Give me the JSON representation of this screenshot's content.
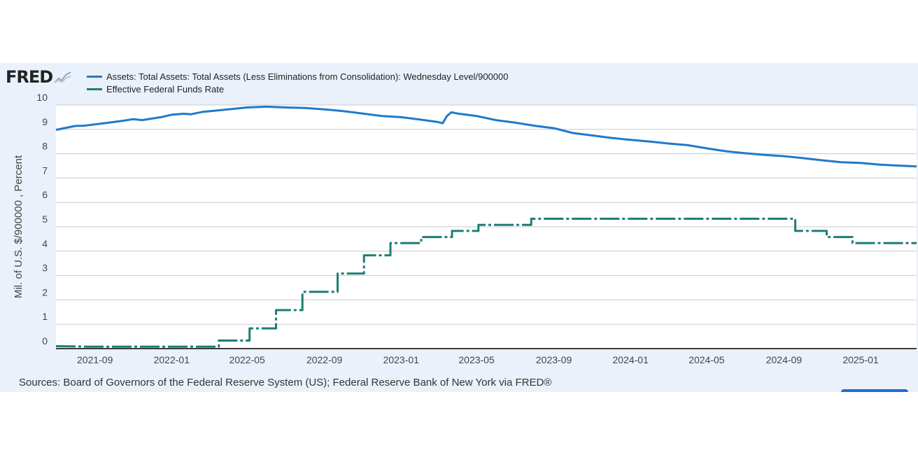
{
  "logo": {
    "text": "FRED"
  },
  "colors": {
    "assets": "#1f7acb",
    "effr": "#1c7e74",
    "panel": "#eaf1fa"
  },
  "legend": [
    {
      "label": "Assets: Total Assets: Total Assets (Less Eliminations from Consolidation): Wednesday Level/900000"
    },
    {
      "label": "Effective Federal Funds Rate"
    }
  ],
  "sources": "Sources: Board of Governors of the Federal Reserve System (US); Federal Reserve Bank of New York via FRED®",
  "chart_data": {
    "type": "line",
    "ylabel": "Mil. of U.S. $/900000 , Percent",
    "ylim": [
      0,
      10
    ],
    "yticks": [
      "0",
      "1",
      "2",
      "3",
      "4",
      "5",
      "6",
      "7",
      "8",
      "9",
      "10"
    ],
    "xlim": [
      "2021-07-01",
      "2025-03-31"
    ],
    "xticks": [
      "2021-09",
      "2022-01",
      "2022-05",
      "2022-09",
      "2023-01",
      "2023-05",
      "2023-09",
      "2024-01",
      "2024-05",
      "2024-09",
      "2025-01"
    ],
    "grid": true,
    "series": [
      {
        "name": "Assets: Total Assets: Total Assets (Less Eliminations from Consolidation): Wednesday Level/900000",
        "style": "solid",
        "points": [
          [
            "2021-07-01",
            8.98
          ],
          [
            "2021-08-01",
            9.14
          ],
          [
            "2021-08-15",
            9.15
          ],
          [
            "2021-09-15",
            9.25
          ],
          [
            "2021-10-15",
            9.35
          ],
          [
            "2021-11-01",
            9.42
          ],
          [
            "2021-11-15",
            9.38
          ],
          [
            "2021-12-15",
            9.5
          ],
          [
            "2022-01-01",
            9.6
          ],
          [
            "2022-01-20",
            9.64
          ],
          [
            "2022-02-01",
            9.62
          ],
          [
            "2022-02-20",
            9.72
          ],
          [
            "2022-03-01",
            9.74
          ],
          [
            "2022-04-01",
            9.82
          ],
          [
            "2022-04-20",
            9.87
          ],
          [
            "2022-05-01",
            9.9
          ],
          [
            "2022-06-01",
            9.93
          ],
          [
            "2022-07-01",
            9.9
          ],
          [
            "2022-08-01",
            9.88
          ],
          [
            "2022-09-01",
            9.82
          ],
          [
            "2022-10-01",
            9.75
          ],
          [
            "2022-11-01",
            9.65
          ],
          [
            "2022-12-01",
            9.55
          ],
          [
            "2023-01-01",
            9.5
          ],
          [
            "2023-02-01",
            9.4
          ],
          [
            "2023-03-01",
            9.3
          ],
          [
            "2023-03-08",
            9.25
          ],
          [
            "2023-03-15",
            9.55
          ],
          [
            "2023-03-22",
            9.7
          ],
          [
            "2023-04-01",
            9.65
          ],
          [
            "2023-05-01",
            9.55
          ],
          [
            "2023-06-01",
            9.38
          ],
          [
            "2023-07-01",
            9.28
          ],
          [
            "2023-08-01",
            9.15
          ],
          [
            "2023-09-01",
            9.05
          ],
          [
            "2023-10-01",
            8.85
          ],
          [
            "2023-11-01",
            8.75
          ],
          [
            "2023-12-01",
            8.65
          ],
          [
            "2024-01-01",
            8.57
          ],
          [
            "2024-02-01",
            8.5
          ],
          [
            "2024-03-01",
            8.42
          ],
          [
            "2024-04-01",
            8.35
          ],
          [
            "2024-05-01",
            8.22
          ],
          [
            "2024-06-01",
            8.1
          ],
          [
            "2024-07-01",
            8.02
          ],
          [
            "2024-08-01",
            7.95
          ],
          [
            "2024-09-01",
            7.9
          ],
          [
            "2024-10-01",
            7.82
          ],
          [
            "2024-11-01",
            7.73
          ],
          [
            "2024-12-01",
            7.65
          ],
          [
            "2025-01-01",
            7.62
          ],
          [
            "2025-02-01",
            7.55
          ],
          [
            "2025-03-31",
            7.48
          ]
        ]
      },
      {
        "name": "Effective Federal Funds Rate",
        "style": "dashed",
        "points": [
          [
            "2021-07-01",
            0.1
          ],
          [
            "2021-08-20",
            0.08
          ],
          [
            "2022-03-17",
            0.08
          ],
          [
            "2022-03-17",
            0.33
          ],
          [
            "2022-05-05",
            0.33
          ],
          [
            "2022-05-05",
            0.83
          ],
          [
            "2022-06-16",
            0.83
          ],
          [
            "2022-06-16",
            1.58
          ],
          [
            "2022-07-28",
            1.58
          ],
          [
            "2022-07-28",
            2.33
          ],
          [
            "2022-09-22",
            2.33
          ],
          [
            "2022-09-22",
            3.08
          ],
          [
            "2022-11-03",
            3.08
          ],
          [
            "2022-11-03",
            3.83
          ],
          [
            "2022-12-15",
            3.83
          ],
          [
            "2022-12-15",
            4.33
          ],
          [
            "2023-02-02",
            4.33
          ],
          [
            "2023-02-02",
            4.58
          ],
          [
            "2023-03-23",
            4.58
          ],
          [
            "2023-03-23",
            4.83
          ],
          [
            "2023-05-04",
            4.83
          ],
          [
            "2023-05-04",
            5.08
          ],
          [
            "2023-07-27",
            5.08
          ],
          [
            "2023-07-27",
            5.33
          ],
          [
            "2024-09-19",
            5.33
          ],
          [
            "2024-09-19",
            4.83
          ],
          [
            "2024-11-08",
            4.83
          ],
          [
            "2024-11-08",
            4.58
          ],
          [
            "2024-12-19",
            4.58
          ],
          [
            "2024-12-19",
            4.33
          ],
          [
            "2025-03-31",
            4.33
          ]
        ]
      }
    ]
  }
}
